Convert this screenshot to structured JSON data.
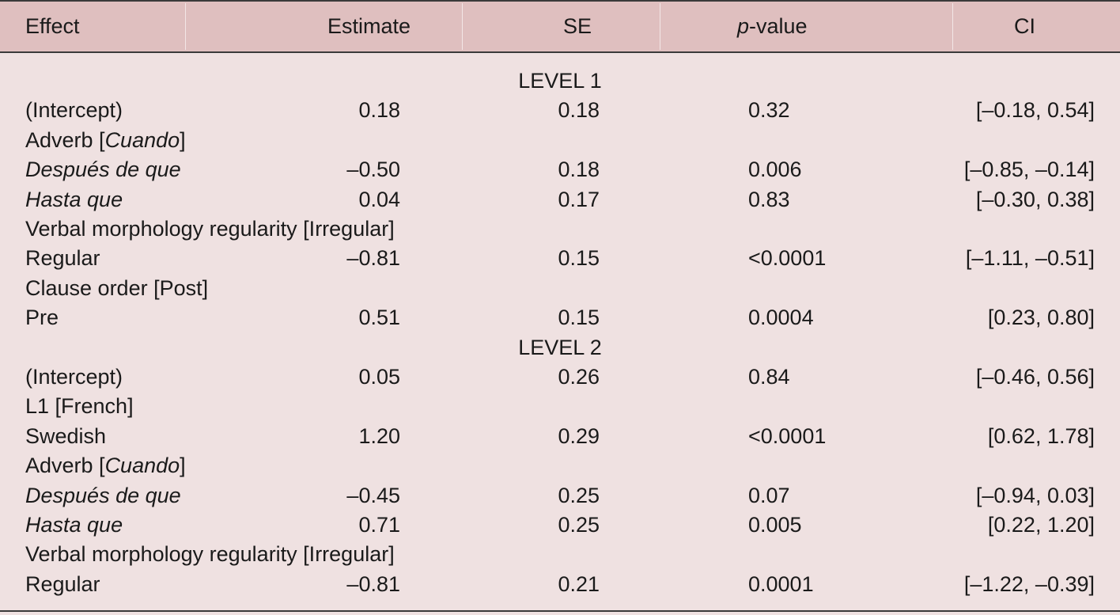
{
  "header": {
    "effect": "Effect",
    "estimate": "Estimate",
    "se": "SE",
    "pvalue_italic": "p",
    "pvalue_rest": "-value",
    "ci": "CI"
  },
  "rows": [
    {
      "type": "level",
      "label": "LEVEL 1"
    },
    {
      "type": "data",
      "effect": "(Intercept)",
      "estimate": "0.18",
      "se": "0.18",
      "p": "0.32",
      "ci": "[–0.18, 0.54]"
    },
    {
      "type": "group",
      "prefix": "Adverb [",
      "italic": "Cuando",
      "suffix": "]"
    },
    {
      "type": "data",
      "effect": "Después de que",
      "italic": true,
      "estimate": "–0.50",
      "se": "0.18",
      "p": "0.006",
      "ci": "[–0.85, –0.14]"
    },
    {
      "type": "data",
      "effect": "Hasta que",
      "italic": true,
      "estimate": "0.04",
      "se": "0.17",
      "p": "0.83",
      "ci": "[–0.30, 0.38]"
    },
    {
      "type": "group",
      "prefix": "Verbal morphology regularity [Irregular]",
      "italic": "",
      "suffix": ""
    },
    {
      "type": "data",
      "effect": "Regular",
      "estimate": "–0.81",
      "se": "0.15",
      "p": "<0.0001",
      "ci": "[–1.11, –0.51]"
    },
    {
      "type": "group",
      "prefix": "Clause order [Post]",
      "italic": "",
      "suffix": ""
    },
    {
      "type": "data",
      "effect": "Pre",
      "estimate": "0.51",
      "se": "0.15",
      "p": "0.0004",
      "ci": "[0.23, 0.80]"
    },
    {
      "type": "level",
      "label": "LEVEL 2"
    },
    {
      "type": "data",
      "effect": "(Intercept)",
      "estimate": "0.05",
      "se": "0.26",
      "p": "0.84",
      "ci": "[–0.46, 0.56]"
    },
    {
      "type": "group",
      "prefix": "L1 [French]",
      "italic": "",
      "suffix": ""
    },
    {
      "type": "data",
      "effect": "Swedish",
      "estimate": "1.20",
      "se": "0.29",
      "p": "<0.0001",
      "ci": "[0.62, 1.78]"
    },
    {
      "type": "group",
      "prefix": "Adverb [",
      "italic": "Cuando",
      "suffix": "]"
    },
    {
      "type": "data",
      "effect": "Después de que",
      "italic": true,
      "estimate": "–0.45",
      "se": "0.25",
      "p": "0.07",
      "ci": "[–0.94, 0.03]"
    },
    {
      "type": "data",
      "effect": "Hasta que",
      "italic": true,
      "estimate": "0.71",
      "se": "0.25",
      "p": "0.005",
      "ci": "[0.22, 1.20]"
    },
    {
      "type": "group",
      "prefix": "Verbal morphology regularity [Irregular]",
      "italic": "",
      "suffix": ""
    },
    {
      "type": "data",
      "effect": "Regular",
      "estimate": "–0.81",
      "se": "0.21",
      "p": "0.0001",
      "ci": "[–1.22, –0.39]"
    }
  ]
}
